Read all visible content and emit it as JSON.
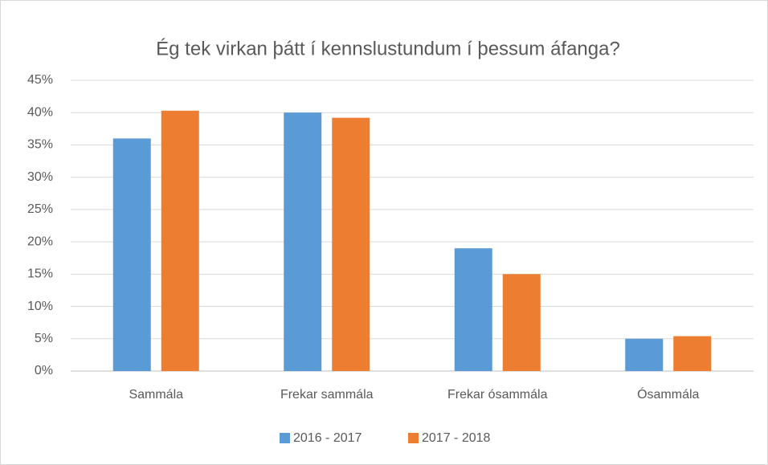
{
  "chart_data": {
    "type": "bar",
    "title": "Ég tek virkan þátt í kennslustundum í þessum áfanga?",
    "categories": [
      "Sammála",
      "Frekar sammála",
      "Frekar ósammála",
      "Ósammála"
    ],
    "series": [
      {
        "name": "2016 - 2017",
        "color": "#5b9bd5",
        "values": [
          36,
          40,
          19,
          5
        ]
      },
      {
        "name": "2017 - 2018",
        "color": "#ed7d31",
        "values": [
          40.3,
          39.2,
          15,
          5.4
        ]
      }
    ],
    "ylim": [
      0,
      45
    ],
    "yticks": [
      {
        "value": 0,
        "label": "0%"
      },
      {
        "value": 5,
        "label": "5%"
      },
      {
        "value": 10,
        "label": "10%"
      },
      {
        "value": 15,
        "label": "15%"
      },
      {
        "value": 20,
        "label": "20%"
      },
      {
        "value": 25,
        "label": "25%"
      },
      {
        "value": 30,
        "label": "30%"
      },
      {
        "value": 35,
        "label": "35%"
      },
      {
        "value": 40,
        "label": "40%"
      },
      {
        "value": 45,
        "label": "45%"
      }
    ],
    "grid": true,
    "legend": "bottom"
  }
}
